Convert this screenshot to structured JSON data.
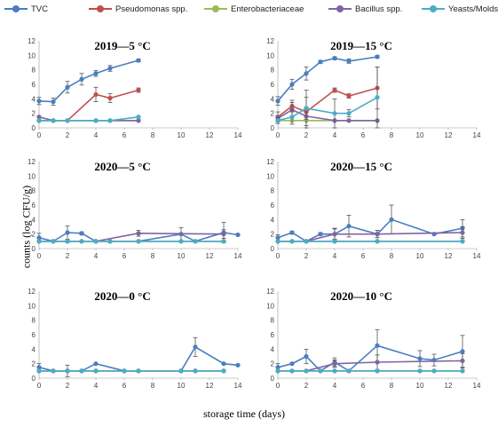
{
  "legend": {
    "items": [
      {
        "label": "TVC",
        "color": "#4a7ec1"
      },
      {
        "label": "Pseudomonas spp.",
        "color": "#c0504d"
      },
      {
        "label": "Enterobacteriaceae",
        "color": "#9bbb59"
      },
      {
        "label": "Bacillus spp.",
        "color": "#8064a2"
      },
      {
        "label": "Yeasts/Molds",
        "color": "#4bacc6"
      }
    ]
  },
  "ylabel": "counts (log CFU/g)",
  "xlabel": "storage time (days)",
  "chart_data": [
    {
      "type": "line",
      "title": "2019—5 °C",
      "xlim": [
        0,
        14
      ],
      "ylim": [
        0,
        12
      ],
      "xticks": [
        "0",
        "2",
        "4",
        "6",
        "8",
        "10",
        "12",
        "14"
      ],
      "yticks": [
        "0",
        "2",
        "4",
        "6",
        "8",
        "10",
        "12"
      ],
      "series": [
        {
          "name": "TVC",
          "color": "#4a7ec1",
          "x": [
            0,
            1,
            2,
            3,
            4,
            5,
            7
          ],
          "y": [
            3.7,
            3.6,
            5.6,
            6.7,
            7.5,
            8.2,
            9.3
          ],
          "err": [
            0.5,
            0.5,
            0.8,
            0.8,
            0.4,
            0.4,
            0.2
          ]
        },
        {
          "name": "Pseudomonas spp.",
          "color": "#c0504d",
          "x": [
            0,
            1,
            2,
            4,
            5,
            7
          ],
          "y": [
            1.0,
            1.0,
            1.0,
            4.6,
            4.1,
            5.2
          ],
          "err": [
            0,
            0,
            0,
            1.0,
            0.6,
            0.3
          ]
        },
        {
          "name": "Enterobacteriaceae",
          "color": "#9bbb59",
          "x": [
            0,
            1,
            2,
            4,
            5,
            7
          ],
          "y": [
            1.0,
            1.0,
            1.0,
            1.0,
            1.0,
            1.0
          ],
          "err": [
            0,
            0,
            0,
            0,
            0,
            0
          ]
        },
        {
          "name": "Bacillus spp.",
          "color": "#8064a2",
          "x": [
            0,
            1,
            2,
            4,
            5,
            7
          ],
          "y": [
            1.5,
            1.0,
            1.0,
            1.0,
            1.0,
            1.0
          ],
          "err": [
            0,
            0,
            0,
            0,
            0,
            0
          ]
        },
        {
          "name": "Yeasts/Molds",
          "color": "#4bacc6",
          "x": [
            0,
            1,
            2,
            4,
            5,
            7
          ],
          "y": [
            1.0,
            1.0,
            1.0,
            1.0,
            1.0,
            1.5
          ],
          "err": [
            0,
            0,
            0,
            0,
            0,
            0
          ]
        }
      ]
    },
    {
      "type": "line",
      "title": "2019—15 °C",
      "xlim": [
        0,
        14
      ],
      "ylim": [
        0,
        12
      ],
      "xticks": [
        "0",
        "2",
        "4",
        "6",
        "8",
        "10",
        "12",
        "14"
      ],
      "yticks": [
        "0",
        "2",
        "4",
        "6",
        "8",
        "10",
        "12"
      ],
      "series": [
        {
          "name": "TVC",
          "color": "#4a7ec1",
          "x": [
            0,
            1,
            2,
            3,
            4,
            5,
            7
          ],
          "y": [
            3.7,
            6.0,
            7.5,
            9.1,
            9.6,
            9.2,
            9.8
          ],
          "err": [
            0.6,
            0.7,
            0.9,
            0.2,
            0.2,
            0.3,
            0.2
          ]
        },
        {
          "name": "Pseudomonas spp.",
          "color": "#c0504d",
          "x": [
            0,
            1,
            2,
            4,
            5,
            7
          ],
          "y": [
            1.5,
            3.0,
            2.2,
            5.2,
            4.4,
            5.5
          ],
          "err": [
            0.7,
            0.8,
            3.0,
            0.3,
            0.3,
            2.9
          ]
        },
        {
          "name": "Enterobacteriaceae",
          "color": "#9bbb59",
          "x": [
            0,
            1,
            2,
            4,
            5,
            7
          ],
          "y": [
            1.0,
            1.0,
            1.0,
            1.0,
            1.0,
            1.0
          ],
          "err": [
            0,
            0,
            0,
            0,
            0,
            0
          ]
        },
        {
          "name": "Bacillus spp.",
          "color": "#8064a2",
          "x": [
            0,
            1,
            2,
            4,
            5,
            7
          ],
          "y": [
            1.3,
            2.5,
            1.6,
            1.0,
            1.0,
            1.0
          ],
          "err": [
            0.3,
            1.0,
            1.3,
            0,
            0,
            0
          ]
        },
        {
          "name": "Yeasts/Molds",
          "color": "#4bacc6",
          "x": [
            0,
            1,
            2,
            4,
            5,
            7
          ],
          "y": [
            1.0,
            1.5,
            2.7,
            2.0,
            2.0,
            4.2
          ],
          "err": [
            0.4,
            1.0,
            1.5,
            2.0,
            0.5,
            4.2
          ]
        }
      ]
    },
    {
      "type": "line",
      "title": "2020—5 °C",
      "xlim": [
        0,
        14
      ],
      "ylim": [
        0,
        12
      ],
      "xticks": [
        "0",
        "2",
        "4",
        "6",
        "8",
        "10",
        "12",
        "14"
      ],
      "yticks": [
        "0",
        "2",
        "4",
        "6",
        "8",
        "10",
        "12"
      ],
      "series": [
        {
          "name": "TVC",
          "color": "#4a7ec1",
          "x": [
            0,
            1,
            2,
            3,
            4,
            5,
            7,
            10,
            11,
            13,
            14
          ],
          "y": [
            1.5,
            1.0,
            2.2,
            2.1,
            1.0,
            1.0,
            1.0,
            2.0,
            1.0,
            2.2,
            1.9
          ],
          "err": [
            0.6,
            0,
            0.9,
            0.2,
            0,
            0,
            0,
            0.9,
            0,
            1.4,
            0
          ]
        },
        {
          "name": "Pseudomonas spp.",
          "color": "#c0504d",
          "x": [
            0,
            1,
            2,
            3,
            4,
            5,
            7,
            10,
            11,
            13
          ],
          "y": [
            1.0,
            1.0,
            1.0,
            1.0,
            1.0,
            1.0,
            1.0,
            1.0,
            1.0,
            1.0
          ],
          "err": [
            0,
            0,
            0,
            0,
            0,
            0,
            0,
            0,
            0,
            0
          ]
        },
        {
          "name": "Enterobacteriaceae",
          "color": "#9bbb59",
          "x": [
            0,
            1,
            2,
            3,
            4,
            5,
            7,
            10,
            11,
            13
          ],
          "y": [
            1.0,
            1.0,
            1.0,
            1.0,
            1.0,
            1.0,
            1.0,
            1.0,
            1.0,
            1.0
          ],
          "err": [
            0,
            0,
            0,
            0,
            0,
            0,
            0,
            0,
            0,
            0
          ]
        },
        {
          "name": "Bacillus spp.",
          "color": "#8064a2",
          "x": [
            0,
            2,
            4,
            7,
            13
          ],
          "y": [
            1.0,
            1.0,
            1.0,
            2.1,
            2.0
          ],
          "err": [
            0,
            0,
            0,
            0.4,
            0.6
          ]
        },
        {
          "name": "Yeasts/Molds",
          "color": "#4bacc6",
          "x": [
            0,
            1,
            2,
            3,
            4,
            5,
            7,
            10,
            11,
            13
          ],
          "y": [
            1.0,
            1.0,
            1.0,
            1.0,
            1.0,
            1.0,
            1.0,
            1.0,
            1.0,
            1.0
          ],
          "err": [
            0,
            0,
            0,
            0,
            0,
            0,
            0,
            0,
            0,
            0
          ]
        }
      ]
    },
    {
      "type": "line",
      "title": "2020—15 °C",
      "xlim": [
        0,
        14
      ],
      "ylim": [
        0,
        12
      ],
      "xticks": [
        "0",
        "2",
        "4",
        "6",
        "8",
        "10",
        "12",
        "14"
      ],
      "yticks": [
        "0",
        "2",
        "4",
        "6",
        "8",
        "10",
        "12"
      ],
      "series": [
        {
          "name": "TVC",
          "color": "#4a7ec1",
          "x": [
            0,
            1,
            2,
            3,
            4,
            5,
            7,
            8,
            11,
            13
          ],
          "y": [
            1.5,
            2.2,
            1.0,
            2.0,
            2.0,
            3.1,
            2.0,
            4.0,
            2.0,
            2.8
          ],
          "err": [
            0.4,
            0.2,
            0,
            0.2,
            0.8,
            1.5,
            0.5,
            2.0,
            0,
            1.2
          ]
        },
        {
          "name": "Pseudomonas spp.",
          "color": "#c0504d",
          "x": [
            0,
            1,
            2,
            4,
            7,
            13
          ],
          "y": [
            1.0,
            1.0,
            1.0,
            1.0,
            1.0,
            1.0
          ],
          "err": [
            0,
            0,
            0,
            0,
            0,
            0
          ]
        },
        {
          "name": "Enterobacteriaceae",
          "color": "#9bbb59",
          "x": [
            0,
            1,
            2,
            4,
            7,
            13
          ],
          "y": [
            1.0,
            1.0,
            1.0,
            1.0,
            1.0,
            1.0
          ],
          "err": [
            0,
            0,
            0,
            0,
            0,
            0
          ]
        },
        {
          "name": "Bacillus spp.",
          "color": "#8064a2",
          "x": [
            0,
            2,
            4,
            7,
            13
          ],
          "y": [
            1.0,
            1.0,
            2.0,
            2.0,
            2.2
          ],
          "err": [
            0,
            0,
            0.7,
            0.5,
            0.8
          ]
        },
        {
          "name": "Yeasts/Molds",
          "color": "#4bacc6",
          "x": [
            0,
            1,
            2,
            4,
            7,
            13
          ],
          "y": [
            1.0,
            1.0,
            1.0,
            1.0,
            1.0,
            1.0
          ],
          "err": [
            0,
            0,
            0,
            0,
            0,
            0
          ]
        }
      ]
    },
    {
      "type": "line",
      "title": "2020—0 °C",
      "xlim": [
        0,
        14
      ],
      "ylim": [
        0,
        12
      ],
      "xticks": [
        "0",
        "2",
        "4",
        "6",
        "8",
        "10",
        "12",
        "14"
      ],
      "yticks": [
        "0",
        "2",
        "4",
        "6",
        "8",
        "10",
        "12"
      ],
      "series": [
        {
          "name": "TVC",
          "color": "#4a7ec1",
          "x": [
            0,
            1,
            2,
            3,
            4,
            6,
            10,
            11,
            13,
            14
          ],
          "y": [
            1.5,
            1.0,
            1.0,
            1.0,
            2.0,
            1.0,
            1.0,
            4.3,
            2.0,
            1.8
          ],
          "err": [
            0.5,
            0,
            0.8,
            0,
            0,
            0,
            0,
            1.3,
            0,
            0
          ]
        },
        {
          "name": "Pseudomonas spp.",
          "color": "#c0504d",
          "x": [
            0,
            1,
            2,
            3,
            4,
            6,
            7,
            10,
            11,
            13
          ],
          "y": [
            1.0,
            1.0,
            1.0,
            1.0,
            1.0,
            1.0,
            1.0,
            1.0,
            1.0,
            1.0
          ],
          "err": [
            0,
            0,
            0,
            0,
            0,
            0,
            0,
            0,
            0,
            0
          ]
        },
        {
          "name": "Enterobacteriaceae",
          "color": "#9bbb59",
          "x": [
            0,
            1,
            2,
            3,
            4,
            6,
            7,
            10,
            11,
            13
          ],
          "y": [
            1.0,
            1.0,
            1.0,
            1.0,
            1.0,
            1.0,
            1.0,
            1.0,
            1.0,
            1.0
          ],
          "err": [
            0,
            0,
            0,
            0,
            0,
            0,
            0,
            0,
            0,
            0
          ]
        },
        {
          "name": "Bacillus spp.",
          "color": "#8064a2",
          "x": [
            0,
            1,
            2,
            3,
            4,
            6,
            7,
            10,
            11,
            13
          ],
          "y": [
            1.0,
            1.0,
            1.0,
            1.0,
            1.0,
            1.0,
            1.0,
            1.0,
            1.0,
            1.0
          ],
          "err": [
            0,
            0,
            0,
            0,
            0,
            0,
            0,
            0,
            0,
            0
          ]
        },
        {
          "name": "Yeasts/Molds",
          "color": "#4bacc6",
          "x": [
            0,
            1,
            2,
            3,
            4,
            6,
            7,
            10,
            11,
            13
          ],
          "y": [
            1.0,
            1.0,
            1.0,
            1.0,
            1.0,
            1.0,
            1.0,
            1.0,
            1.0,
            1.0
          ],
          "err": [
            0,
            0,
            0,
            0,
            0,
            0,
            0,
            0,
            0,
            0
          ]
        }
      ]
    },
    {
      "type": "line",
      "title": "2020—10 °C",
      "xlim": [
        0,
        14
      ],
      "ylim": [
        0,
        12
      ],
      "xticks": [
        "0",
        "2",
        "4",
        "6",
        "8",
        "10",
        "12",
        "14"
      ],
      "yticks": [
        "0",
        "2",
        "4",
        "6",
        "8",
        "10",
        "12"
      ],
      "series": [
        {
          "name": "TVC",
          "color": "#4a7ec1",
          "x": [
            0,
            1,
            2,
            3,
            4,
            5,
            7,
            10,
            11,
            13
          ],
          "y": [
            1.5,
            2.0,
            3.0,
            1.0,
            2.2,
            1.0,
            4.5,
            2.7,
            2.5,
            3.7
          ],
          "err": [
            0.5,
            0,
            1.0,
            0,
            0.6,
            0,
            2.2,
            1.1,
            0.8,
            2.2
          ]
        },
        {
          "name": "Pseudomonas spp.",
          "color": "#c0504d",
          "x": [
            0,
            1,
            2,
            3,
            4,
            5,
            7,
            10,
            11,
            13
          ],
          "y": [
            1.0,
            1.0,
            1.0,
            1.0,
            1.0,
            1.0,
            1.0,
            1.0,
            1.0,
            1.0
          ],
          "err": [
            0,
            0,
            0,
            0,
            0,
            0,
            0,
            0,
            0,
            0
          ]
        },
        {
          "name": "Enterobacteriaceae",
          "color": "#9bbb59",
          "x": [
            0,
            1,
            2,
            3,
            4,
            5,
            7,
            10,
            11,
            13
          ],
          "y": [
            1.0,
            1.0,
            1.0,
            1.0,
            1.0,
            1.0,
            1.0,
            1.0,
            1.0,
            1.0
          ],
          "err": [
            0,
            0,
            0,
            0,
            0,
            0,
            0,
            0,
            0,
            0
          ]
        },
        {
          "name": "Bacillus spp.",
          "color": "#8064a2",
          "x": [
            0,
            2,
            4,
            7,
            13
          ],
          "y": [
            1.0,
            1.0,
            2.0,
            2.2,
            2.4
          ],
          "err": [
            0,
            0,
            0.5,
            1.0,
            1.0
          ]
        },
        {
          "name": "Yeasts/Molds",
          "color": "#4bacc6",
          "x": [
            0,
            1,
            2,
            3,
            4,
            5,
            7,
            10,
            11,
            13
          ],
          "y": [
            1.0,
            1.0,
            1.0,
            1.0,
            1.0,
            1.0,
            1.0,
            1.0,
            1.0,
            1.0
          ],
          "err": [
            0,
            0,
            0,
            0,
            0,
            0,
            0,
            0,
            0,
            0
          ]
        }
      ]
    }
  ]
}
